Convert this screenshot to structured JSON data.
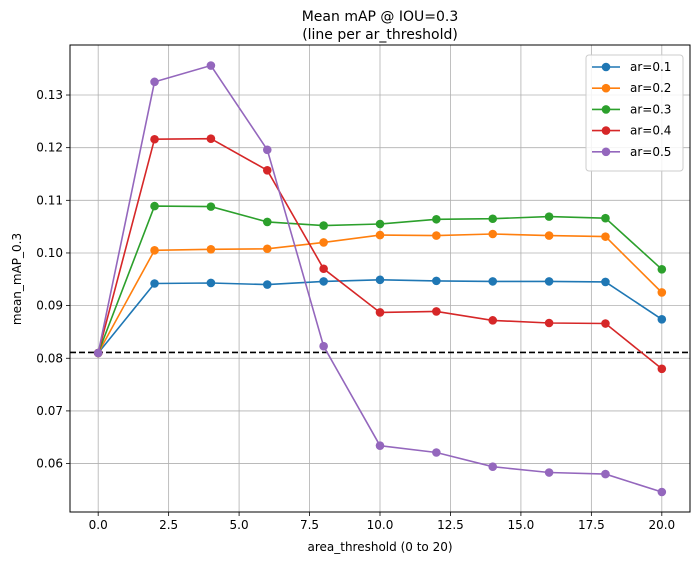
{
  "chart_data": {
    "type": "line",
    "title": "Mean mAP @ IOU=0.3",
    "subtitle": "(line per ar_threshold)",
    "xlabel": "area_threshold (0 to 20)",
    "ylabel": "mean_mAP_0.3",
    "xlim": [
      -1,
      21
    ],
    "ylim": [
      0.0508,
      0.1395
    ],
    "x_ticks": [
      0.0,
      2.5,
      5.0,
      7.5,
      10.0,
      12.5,
      15.0,
      17.5,
      20.0
    ],
    "x_tick_labels": [
      "0.0",
      "2.5",
      "5.0",
      "7.5",
      "10.0",
      "12.5",
      "15.0",
      "17.5",
      "20.0"
    ],
    "y_ticks": [
      0.06,
      0.07,
      0.08,
      0.09,
      0.1,
      0.11,
      0.12,
      0.13
    ],
    "y_tick_labels": [
      "0.06",
      "0.07",
      "0.08",
      "0.09",
      "0.10",
      "0.11",
      "0.12",
      "0.13"
    ],
    "grid": true,
    "legend_position": "top-right",
    "x": [
      0,
      2,
      4,
      6,
      8,
      10,
      12,
      14,
      16,
      18,
      20
    ],
    "series": [
      {
        "name": "ar=0.1",
        "color": "#1f77b4",
        "values": [
          0.081,
          0.0942,
          0.0943,
          0.094,
          0.0946,
          0.0949,
          0.0947,
          0.0946,
          0.0946,
          0.0945,
          0.0874
        ]
      },
      {
        "name": "ar=0.2",
        "color": "#ff7f0e",
        "values": [
          0.081,
          0.1005,
          0.1007,
          0.1008,
          0.102,
          0.1034,
          0.1033,
          0.1036,
          0.1033,
          0.1031,
          0.0925
        ]
      },
      {
        "name": "ar=0.3",
        "color": "#2ca02c",
        "values": [
          0.081,
          0.1089,
          0.1088,
          0.1059,
          0.1052,
          0.1055,
          0.1064,
          0.1065,
          0.1069,
          0.1066,
          0.0969
        ]
      },
      {
        "name": "ar=0.4",
        "color": "#d62728",
        "values": [
          0.081,
          0.1216,
          0.1217,
          0.1157,
          0.097,
          0.0887,
          0.0889,
          0.0872,
          0.0867,
          0.0866,
          0.078
        ]
      },
      {
        "name": "ar=0.5",
        "color": "#9467bd",
        "values": [
          0.081,
          0.1325,
          0.1356,
          0.1196,
          0.0823,
          0.0634,
          0.0621,
          0.0594,
          0.0583,
          0.058,
          0.0546
        ]
      }
    ],
    "reference_line": {
      "y": 0.0811,
      "color": "#000000",
      "style": "dashed"
    }
  }
}
